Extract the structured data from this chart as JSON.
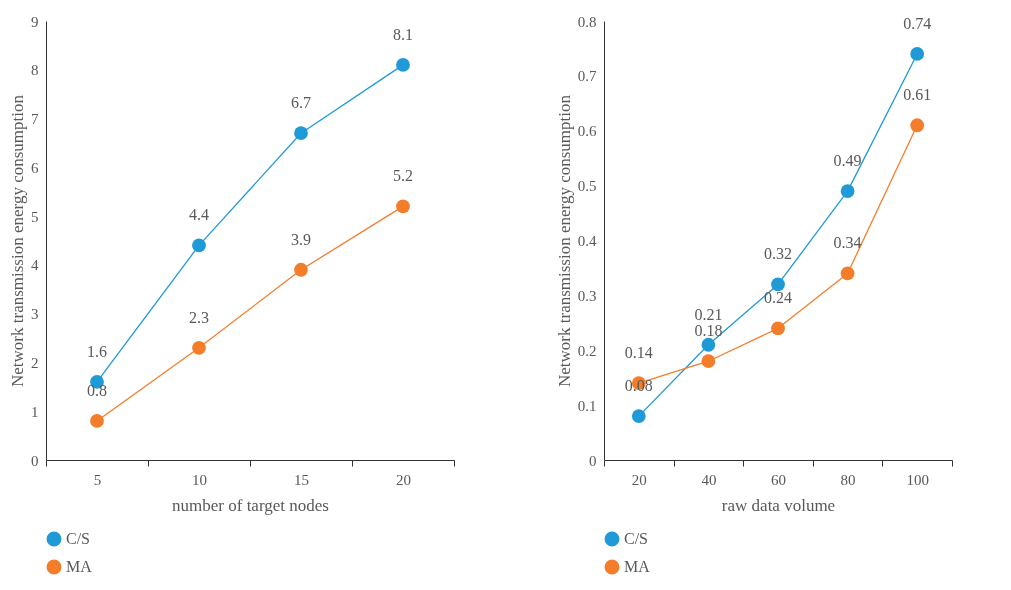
{
  "chart_data": [
    {
      "type": "line",
      "xlabel": "number of target nodes",
      "ylabel": "Network transmission energy consumption",
      "categories": [
        "5",
        "10",
        "15",
        "20"
      ],
      "ylim": [
        0,
        9
      ],
      "yticks": [
        0,
        1,
        2,
        3,
        4,
        5,
        6,
        7,
        8,
        9
      ],
      "grid": false,
      "legend": "bottom",
      "marker": "circle",
      "data_labels": true,
      "series": [
        {
          "name": "C/S",
          "color": "#1f9ad6",
          "values": [
            1.6,
            4.4,
            6.7,
            8.1
          ]
        },
        {
          "name": "MA",
          "color": "#f47d2a",
          "values": [
            0.8,
            2.3,
            3.9,
            5.2
          ]
        }
      ]
    },
    {
      "type": "line",
      "xlabel": "raw data volume",
      "ylabel": "Network transmission energy consumption",
      "categories": [
        "20",
        "40",
        "60",
        "80",
        "100"
      ],
      "ylim": [
        0,
        0.8
      ],
      "yticks": [
        0,
        0.1,
        0.2,
        0.3,
        0.4,
        0.5,
        0.6,
        0.7,
        0.8
      ],
      "grid": false,
      "legend": "bottom",
      "marker": "circle",
      "data_labels": true,
      "series": [
        {
          "name": "C/S",
          "color": "#1f9ad6",
          "values": [
            0.08,
            0.21,
            0.32,
            0.49,
            0.74
          ]
        },
        {
          "name": "MA",
          "color": "#f47d2a",
          "values": [
            0.14,
            0.18,
            0.24,
            0.34,
            0.61
          ]
        }
      ]
    }
  ]
}
